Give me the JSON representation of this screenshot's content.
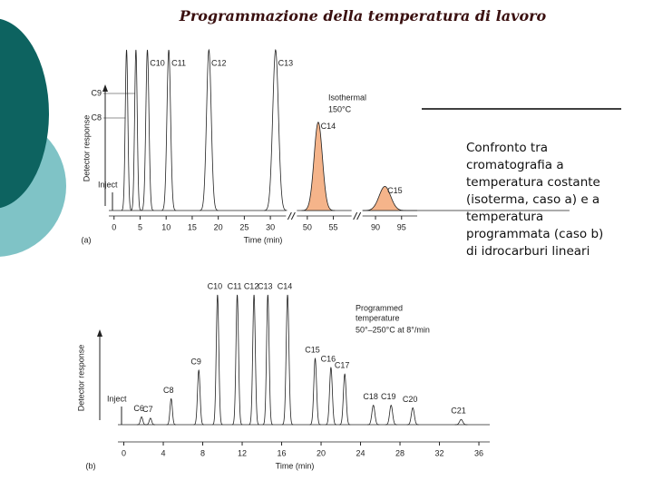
{
  "title": "Programmazione della temperatura di lavoro",
  "description": [
    "Confronto tra",
    "cromatografia a",
    "temperatura costante",
    "(isoterma, caso a) e a",
    "temperatura",
    "programmata (caso b)",
    "di idrocarburi lineari"
  ],
  "chart_data": [
    {
      "type": "chromatogram",
      "panel": "(a)",
      "xlabel": "Time (min)",
      "ylabel": "Detector response",
      "inject": "Inject",
      "note_title": [
        "Isothermal"
      ],
      "note_color": "#e8853d",
      "note": "150°C",
      "xsegments": [
        [
          -1,
          33
        ],
        [
          48,
          58.5
        ],
        [
          87.5,
          98
        ]
      ],
      "xticks": [
        0,
        5,
        10,
        15,
        20,
        25,
        30,
        50,
        55,
        90,
        95
      ],
      "ylim": [
        0,
        100
      ],
      "peaks": {
        "labels": [
          "C8",
          "C9",
          "C10",
          "C11",
          "C12",
          "C13",
          "C14",
          "C15"
        ],
        "x": [
          2.4,
          4.2,
          6.4,
          10.5,
          18.2,
          31,
          52.1,
          91.8
        ],
        "values": [
          100,
          100,
          100,
          100,
          100,
          100,
          55,
          15
        ],
        "widths": [
          0.25,
          0.25,
          0.3,
          0.35,
          0.45,
          0.55,
          0.8,
          1.1
        ],
        "label_colors": [
          null,
          null,
          null,
          null,
          null,
          null,
          "#e8853d",
          "#e8853d"
        ],
        "fills": [
          null,
          null,
          null,
          null,
          null,
          null,
          "#f5b48a",
          "#f5b48a"
        ]
      }
    },
    {
      "type": "chromatogram",
      "panel": "(b)",
      "xlabel": "Time (min)",
      "ylabel": "Detector response",
      "inject": "Inject",
      "note_title": [
        "Programmed",
        "temperature"
      ],
      "note_color": "#e8853d",
      "note": "50°–250°C at 8°/min",
      "xlim": [
        -0.6,
        37.1
      ],
      "xticks": [
        0,
        4,
        8,
        12,
        16,
        20,
        24,
        28,
        32,
        36
      ],
      "ylim": [
        0,
        100
      ],
      "peaks": {
        "labels": [
          "C6",
          "C7",
          "C8",
          "C9",
          "C10",
          "C11",
          "C12",
          "C13",
          "C14",
          "C15",
          "C16",
          "C17",
          "C18",
          "C19",
          "C20",
          "C21"
        ],
        "x": [
          1.8,
          2.7,
          4.8,
          7.6,
          9.5,
          11.5,
          13.2,
          14.6,
          16.6,
          19.4,
          21,
          22.4,
          25.3,
          27.1,
          29.3,
          34.2
        ],
        "values": [
          6,
          5,
          20,
          42,
          100,
          100,
          100,
          100,
          100,
          51,
          44,
          39,
          15,
          15,
          13,
          4
        ],
        "widths": [
          0.12,
          0.12,
          0.12,
          0.13,
          0.13,
          0.13,
          0.13,
          0.13,
          0.14,
          0.14,
          0.14,
          0.14,
          0.15,
          0.15,
          0.15,
          0.16
        ],
        "label_colors": [
          null,
          null,
          null,
          null,
          null,
          null,
          null,
          null,
          "#e8853d",
          "#e8853d",
          null,
          null,
          null,
          null,
          null,
          null
        ],
        "fills": [
          null,
          null,
          null,
          null,
          null,
          null,
          null,
          null,
          null,
          null,
          null,
          null,
          null,
          null,
          null,
          null
        ]
      }
    }
  ]
}
